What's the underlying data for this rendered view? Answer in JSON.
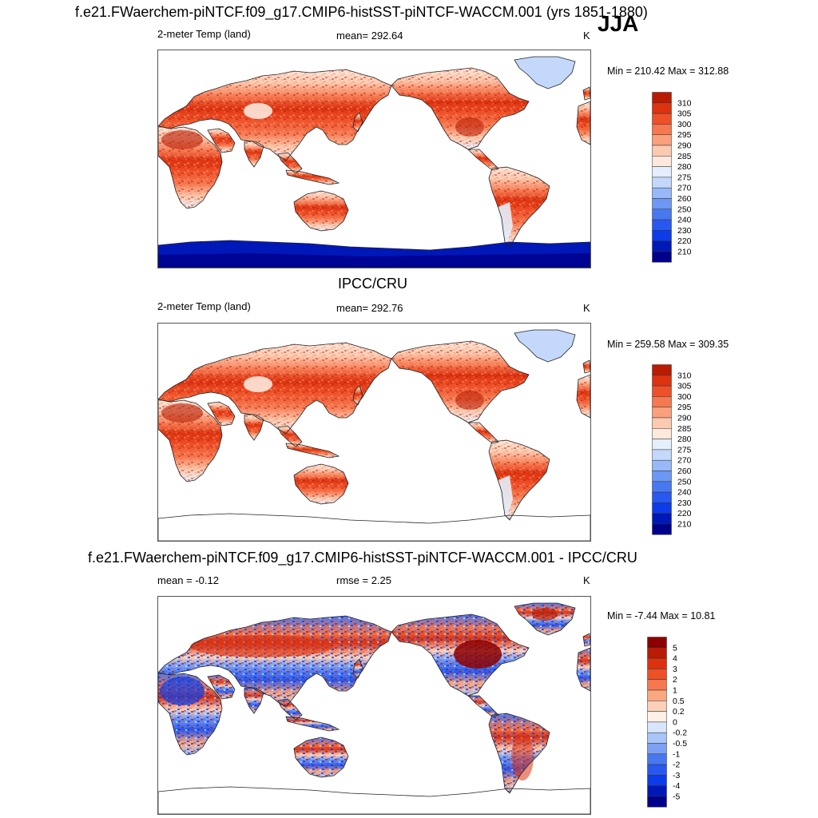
{
  "season": "JJA",
  "title_top": "f.e21.FWaerchem-piNTCF.f09_g17.CMIP6-histSST-piNTCF-WACCM.001 (yrs 1851-1880)",
  "title_mid": "IPCC/CRU",
  "title_bot": "f.e21.FWaerchem-piNTCF.f09_g17.CMIP6-histSST-piNTCF-WACCM.001 - IPCC/CRU",
  "colors": {
    "abs_scale": [
      "#00008b",
      "#0018b8",
      "#0c3ce8",
      "#2858f0",
      "#4878f0",
      "#6c98f4",
      "#98b8f8",
      "#c4d8fc",
      "#e4eefc",
      "#fde8dc",
      "#fccab0",
      "#f9a07c",
      "#f57850",
      "#ee5028",
      "#dc3210",
      "#b81c04",
      "#8b0000"
    ],
    "diff_scale": [
      "#00008b",
      "#0018b8",
      "#0c3ce8",
      "#2858f0",
      "#4878f0",
      "#7ca0f4",
      "#a8c4f8",
      "#d8e6fc",
      "#fdf0e6",
      "#fcd0b8",
      "#f9a880",
      "#f57850",
      "#ee5028",
      "#dc3210",
      "#b81c04",
      "#8b0000"
    ]
  },
  "panels": [
    {
      "id": "model",
      "field": "2-meter Temp (land)",
      "stat": "mean= 292.64",
      "units": "K",
      "minmax": "Min = 210.42 Max = 312.88",
      "levels": [
        "310",
        "305",
        "300",
        "295",
        "290",
        "285",
        "280",
        "275",
        "270",
        "260",
        "250",
        "240",
        "230",
        "220",
        "210"
      ],
      "antarctica": true
    },
    {
      "id": "obs",
      "field": "2-meter Temp (land)",
      "stat": "mean= 292.76",
      "units": "K",
      "minmax": "Min = 259.58 Max = 309.35",
      "levels": [
        "310",
        "305",
        "300",
        "295",
        "290",
        "285",
        "280",
        "275",
        "270",
        "260",
        "250",
        "240",
        "230",
        "220",
        "210"
      ],
      "antarctica": false
    },
    {
      "id": "diff",
      "field": "mean =  -0.12",
      "stat": "rmse =   2.25",
      "units": "K",
      "minmax": "Min =  -7.44 Max =  10.81",
      "levels": [
        "5",
        "4",
        "3",
        "2",
        "1",
        "0.5",
        "0.2",
        "0",
        "-0.2",
        "-0.5",
        "-1",
        "-2",
        "-3",
        "-4",
        "-5"
      ],
      "antarctica": false
    }
  ]
}
